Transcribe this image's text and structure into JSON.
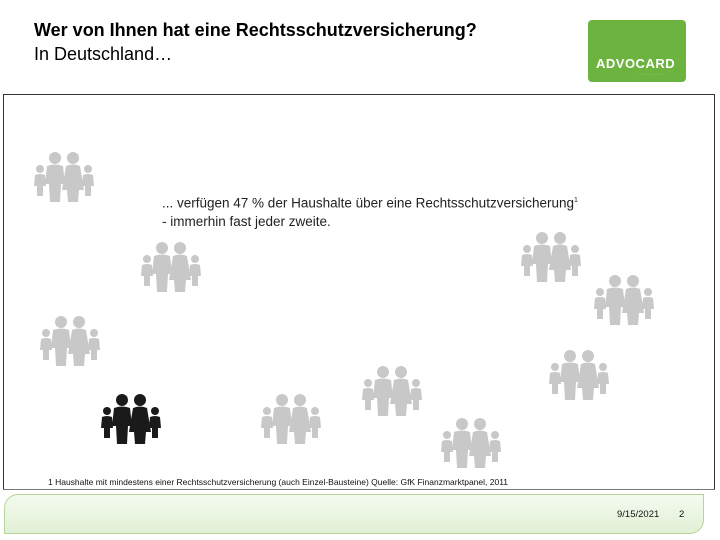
{
  "slide": {
    "title_line1": "Wer von Ihnen hat eine Rechtsschutzversicherung?",
    "title_line2": "In Deutschland…",
    "logo_text": "ADVOCARD",
    "body_line1": "... verfügen 47 % der Haushalte über eine Rechtsschutzversicherung",
    "footnote_marker": "1",
    "body_line2": "- immerhin fast jeder zweite.",
    "footnote": "1 Haushalte mit mindestens einer Rechtsschutzversicherung (auch Einzel-Bausteine) Quelle: GfK Finanzmarktpanel, 2011",
    "date": "9/15/2021",
    "page_number": "2"
  },
  "illustration": {
    "families_total": 10,
    "highlighted_families": 1,
    "icon": "family-icon",
    "grey_color": "#c8c8c8",
    "highlight_color": "#1a1a1a"
  },
  "colors": {
    "brand_green": "#6cb33f",
    "footer_tint": "#e2f0d6"
  }
}
